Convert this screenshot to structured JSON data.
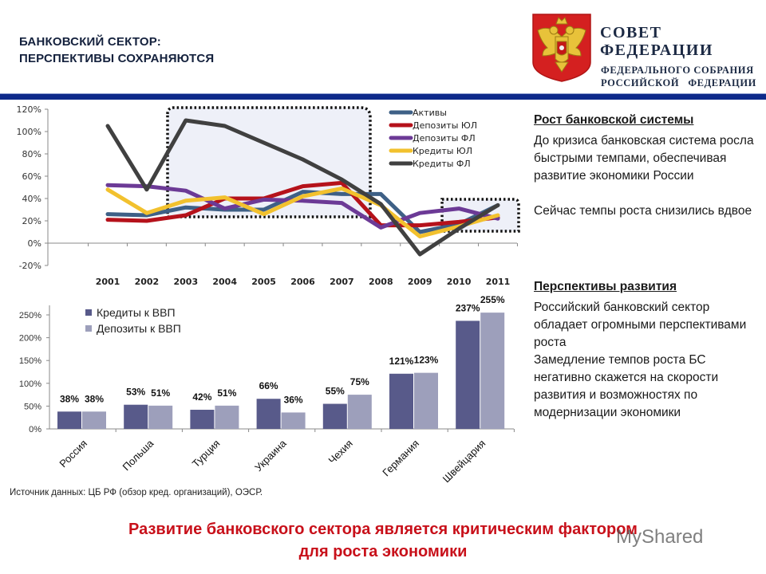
{
  "header": {
    "title_line1": "БАНКОВСКИЙ СЕКТОР:",
    "title_line2": "ПЕРСПЕКТИВЫ СОХРАНЯЮТСЯ"
  },
  "organization": {
    "name": "СОВЕТ ФЕДЕРАЦИИ",
    "sub_line1": "ФЕДЕРАЛЬНОГО СОБРАНИЯ",
    "sub_line2": "РОССИЙСКОЙ   ФЕДЕРАЦИИ",
    "emblem": "coat-of-arms-icon"
  },
  "colors": {
    "rule": "#0d2a8a",
    "conclusion": "#c8101a",
    "bar_credits": "#585a8a",
    "bar_deposits": "#9d9fbb"
  },
  "chart_data": [
    {
      "type": "line",
      "title": "",
      "xlabel": "",
      "ylabel": "",
      "x": [
        "2001",
        "2002",
        "2003",
        "2004",
        "2005",
        "2006",
        "2007",
        "2008",
        "2009",
        "2010",
        "2011"
      ],
      "yticks": [
        "120%",
        "100%",
        "80%",
        "60%",
        "40%",
        "20%",
        "0%",
        "-20%"
      ],
      "ylim": [
        -20,
        120
      ],
      "grid": false,
      "legend_position": "top-right",
      "series": [
        {
          "name": "Активы",
          "color": "#3e6086",
          "values": [
            26,
            25,
            32,
            30,
            30,
            46,
            44,
            44,
            10,
            17,
            34
          ]
        },
        {
          "name": "Депозиты ЮЛ",
          "color": "#b5121b",
          "values": [
            21,
            20,
            25,
            40,
            40,
            51,
            54,
            16,
            16,
            19,
            23
          ]
        },
        {
          "name": "Депозиты ФЛ",
          "color": "#6c3a96",
          "values": [
            52,
            51,
            47,
            31,
            39,
            38,
            36,
            14,
            27,
            31,
            22
          ]
        },
        {
          "name": "Кредиты ЮЛ",
          "color": "#f2c12e",
          "values": [
            48,
            27,
            38,
            41,
            26,
            42,
            49,
            34,
            6,
            15,
            25
          ]
        },
        {
          "name": "Кредиты ФЛ",
          "color": "#404040",
          "values": [
            105,
            48,
            110,
            105,
            90,
            75,
            57,
            35,
            -10,
            13,
            34
          ]
        }
      ],
      "annotations": [
        "dotted highlight box 2003–2007 (boom period)",
        "dotted highlight box 2010–2011"
      ]
    },
    {
      "type": "bar",
      "title": "",
      "xlabel": "",
      "ylabel": "",
      "categories": [
        "Россия",
        "Польша",
        "Турция",
        "Украина",
        "Чехия",
        "Германия",
        "Швейцария"
      ],
      "yticks": [
        "250%",
        "200%",
        "150%",
        "100%",
        "50%",
        "0%"
      ],
      "ylim": [
        0,
        250
      ],
      "grid": false,
      "legend_position": "top-left",
      "series": [
        {
          "name": "Кредиты к ВВП",
          "color": "#585a8a",
          "values": [
            38,
            53,
            42,
            66,
            55,
            121,
            237
          ],
          "labels": [
            "38%",
            "53%",
            "42%",
            "66%",
            "55%",
            "121%",
            "237%"
          ]
        },
        {
          "name": "Депозиты к ВВП",
          "color": "#9d9fbb",
          "values": [
            38,
            51,
            51,
            36,
            75,
            123,
            255
          ],
          "labels": [
            "38%",
            "51%",
            "51%",
            "36%",
            "75%",
            "123%",
            "255%"
          ]
        }
      ]
    }
  ],
  "side_panel": {
    "section1_title": "Рост банковской системы",
    "section1_text": "До кризиса банковская система росла быстрыми темпами, обеспечивая развитие экономики России",
    "section1_text2": "Сейчас темпы роста снизились вдвое",
    "section2_title": "Перспективы развития",
    "section2_text": "Российский банковский  сектор обладает огромными перспективами роста",
    "section2_text2": "Замедление темпов роста БС негативно скажется на скорости развития и возможностях по модернизации экономики"
  },
  "source": "Источник данных: ЦБ РФ (обзор кред. организаций), ОЭСР.",
  "conclusion": {
    "line1": "Развитие банковского сектора является критическим фактором",
    "line2": "для роста экономики"
  },
  "watermark": "MyShared"
}
